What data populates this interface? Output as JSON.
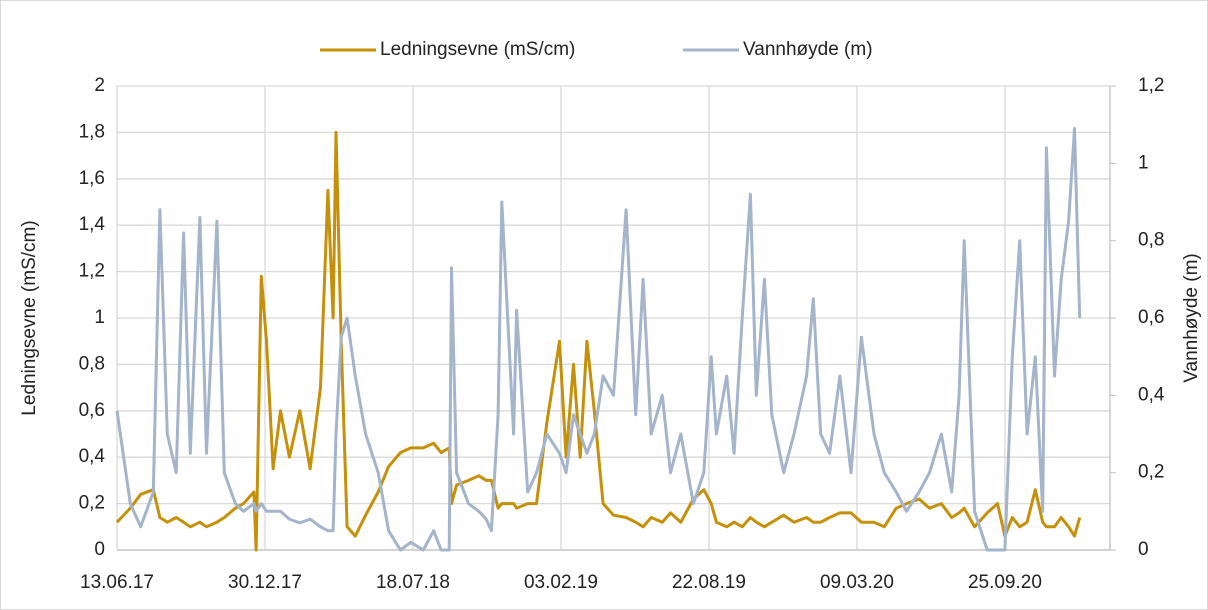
{
  "chart_data": {
    "type": "line",
    "x": [
      "13.06.17",
      "01.07.17",
      "15.07.17",
      "01.08.17",
      "10.08.17",
      "20.08.17",
      "01.09.17",
      "11.09.17",
      "20.09.17",
      "03.10.17",
      "12.10.17",
      "26.10.17",
      "05.11.17",
      "20.11.17",
      "01.12.17",
      "15.12.17",
      "18.12.17",
      "25.12.17",
      "01.01.18",
      "10.01.18",
      "20.01.18",
      "01.02.18",
      "15.02.18",
      "01.03.18",
      "15.03.18",
      "25.03.18",
      "01.04.18",
      "05.04.18",
      "12.04.18",
      "20.04.18",
      "01.05.18",
      "15.05.18",
      "01.06.18",
      "15.06.18",
      "01.07.18",
      "15.07.18",
      "01.08.18",
      "15.08.18",
      "25.08.18",
      "05.09.18",
      "08.09.18",
      "15.09.18",
      "01.10.18",
      "15.10.18",
      "25.10.18",
      "01.11.18",
      "10.11.18",
      "15.11.18",
      "01.12.18",
      "05.12.18",
      "20.12.18",
      "01.01.19",
      "15.01.19",
      "01.02.19",
      "10.02.19",
      "20.02.19",
      "01.03.19",
      "10.03.19",
      "20.03.19",
      "01.04.19",
      "15.04.19",
      "02.05.19",
      "15.05.19",
      "25.05.19",
      "05.06.19",
      "20.06.19",
      "01.07.19",
      "15.07.19",
      "01.08.19",
      "15.08.19",
      "25.08.19",
      "01.09.19",
      "15.09.19",
      "25.09.19",
      "06.10.19",
      "17.10.19",
      "25.10.19",
      "05.11.19",
      "15.11.19",
      "01.12.19",
      "15.12.19",
      "01.01.20",
      "10.01.20",
      "20.01.20",
      "01.02.20",
      "15.02.20",
      "01.03.20",
      "15.03.20",
      "01.04.20",
      "15.04.20",
      "01.05.20",
      "15.05.20",
      "01.06.20",
      "15.06.20",
      "01.07.20",
      "15.07.20",
      "25.07.20",
      "01.08.20",
      "15.08.20",
      "01.09.20",
      "15.09.20",
      "25.09.20",
      "05.10.20",
      "15.10.20",
      "25.10.20",
      "05.11.20",
      "15.11.20",
      "20.11.20",
      "01.12.20",
      "10.12.20",
      "20.12.20",
      "28.12.20",
      "04.01.21"
    ],
    "series": [
      {
        "name": "Ledningsevne (mS/cm)",
        "color": "#c5900a",
        "values": [
          0.12,
          0.18,
          0.24,
          0.26,
          0.14,
          0.12,
          0.14,
          0.12,
          0.1,
          0.12,
          0.1,
          0.12,
          0.14,
          0.18,
          0.2,
          0.25,
          0,
          1.18,
          0.9,
          0.35,
          0.6,
          0.4,
          0.6,
          0.35,
          0.7,
          1.55,
          1.0,
          1.8,
          0.9,
          0.1,
          0.06,
          0.15,
          0.25,
          0.36,
          0.42,
          0.44,
          0.44,
          0.46,
          0.42,
          0.44,
          0.2,
          0.28,
          0.3,
          0.32,
          0.3,
          0.3,
          0.18,
          0.2,
          0.2,
          0.18,
          0.2,
          0.2,
          0.55,
          0.9,
          0.4,
          0.8,
          0.4,
          0.9,
          0.6,
          0.2,
          0.15,
          0.14,
          0.12,
          0.1,
          0.14,
          0.12,
          0.16,
          0.12,
          0.22,
          0.26,
          0.2,
          0.12,
          0.1,
          0.12,
          0.1,
          0.14,
          0.12,
          0.1,
          0.12,
          0.15,
          0.12,
          0.14,
          0.12,
          0.12,
          0.14,
          0.16,
          0.16,
          0.12,
          0.12,
          0.1,
          0.18,
          0.2,
          0.22,
          0.18,
          0.2,
          0.14,
          0.16,
          0.18,
          0.1,
          0.16,
          0.2,
          0.06,
          0.14,
          0.1,
          0.12,
          0.26,
          0.12,
          0.1,
          0.1,
          0.14,
          0.1,
          0.06,
          0.14
        ]
      },
      {
        "name": "Vannhøyde (m)",
        "color": "#a3b4cb",
        "axis": "y2",
        "values": [
          0.36,
          0.12,
          0.06,
          0.15,
          0.88,
          0.3,
          0.2,
          0.82,
          0.25,
          0.86,
          0.25,
          0.85,
          0.2,
          0.12,
          0.1,
          0.12,
          0.1,
          0.12,
          0.1,
          0.1,
          0.1,
          0.08,
          0.07,
          0.08,
          0.06,
          0.05,
          0.05,
          0.3,
          0.55,
          0.6,
          0.45,
          0.3,
          0.2,
          0.05,
          0,
          0.02,
          0,
          0.05,
          0,
          0,
          0.73,
          0.2,
          0.12,
          0.1,
          0.08,
          0.05,
          0.35,
          0.9,
          0.3,
          0.62,
          0.15,
          0.2,
          0.3,
          0.25,
          0.2,
          0.35,
          0.3,
          0.25,
          0.3,
          0.45,
          0.4,
          0.88,
          0.35,
          0.7,
          0.3,
          0.4,
          0.2,
          0.3,
          0.12,
          0.2,
          0.5,
          0.3,
          0.45,
          0.25,
          0.6,
          0.92,
          0.4,
          0.7,
          0.35,
          0.2,
          0.3,
          0.45,
          0.65,
          0.3,
          0.25,
          0.45,
          0.2,
          0.55,
          0.3,
          0.2,
          0.15,
          0.1,
          0.15,
          0.2,
          0.3,
          0.15,
          0.4,
          0.8,
          0.1,
          0,
          0,
          0,
          0.5,
          0.8,
          0.3,
          0.5,
          0.1,
          1.04,
          0.45,
          0.7,
          0.85,
          1.09,
          0.6
        ]
      }
    ],
    "xlim": [
      "13.06.17",
      "14.02.21"
    ],
    "xticks": [
      "13.06.17",
      "30.12.17",
      "18.07.18",
      "03.02.19",
      "22.08.19",
      "09.03.20",
      "25.09.20"
    ],
    "ylim": [
      0,
      2
    ],
    "yticks": [
      0,
      {
        "value": 0.2,
        "label": "0,2"
      },
      {
        "value": 0.4,
        "label": "0,4"
      },
      {
        "value": 0.6,
        "label": "0,6"
      },
      {
        "value": 0.8,
        "label": "0,8"
      },
      1,
      {
        "value": 1.2,
        "label": "1,2"
      },
      {
        "value": 1.4,
        "label": "1,4"
      },
      {
        "value": 1.6,
        "label": "1,6"
      },
      {
        "value": 1.8,
        "label": "1,8"
      },
      2
    ],
    "y2lim": [
      0,
      1.2
    ],
    "y2ticks": [
      0,
      {
        "value": 0.2,
        "label": "0,2"
      },
      {
        "value": 0.4,
        "label": "0,4"
      },
      {
        "value": 0.6,
        "label": "0,6"
      },
      {
        "value": 0.8,
        "label": "0,8"
      },
      1,
      {
        "value": 1.2,
        "label": "1,2"
      }
    ],
    "ylabel": "Ledningsevne (mS/cm)",
    "y2label": "Vannhøyde (m)",
    "grid": true,
    "legend": "top"
  }
}
